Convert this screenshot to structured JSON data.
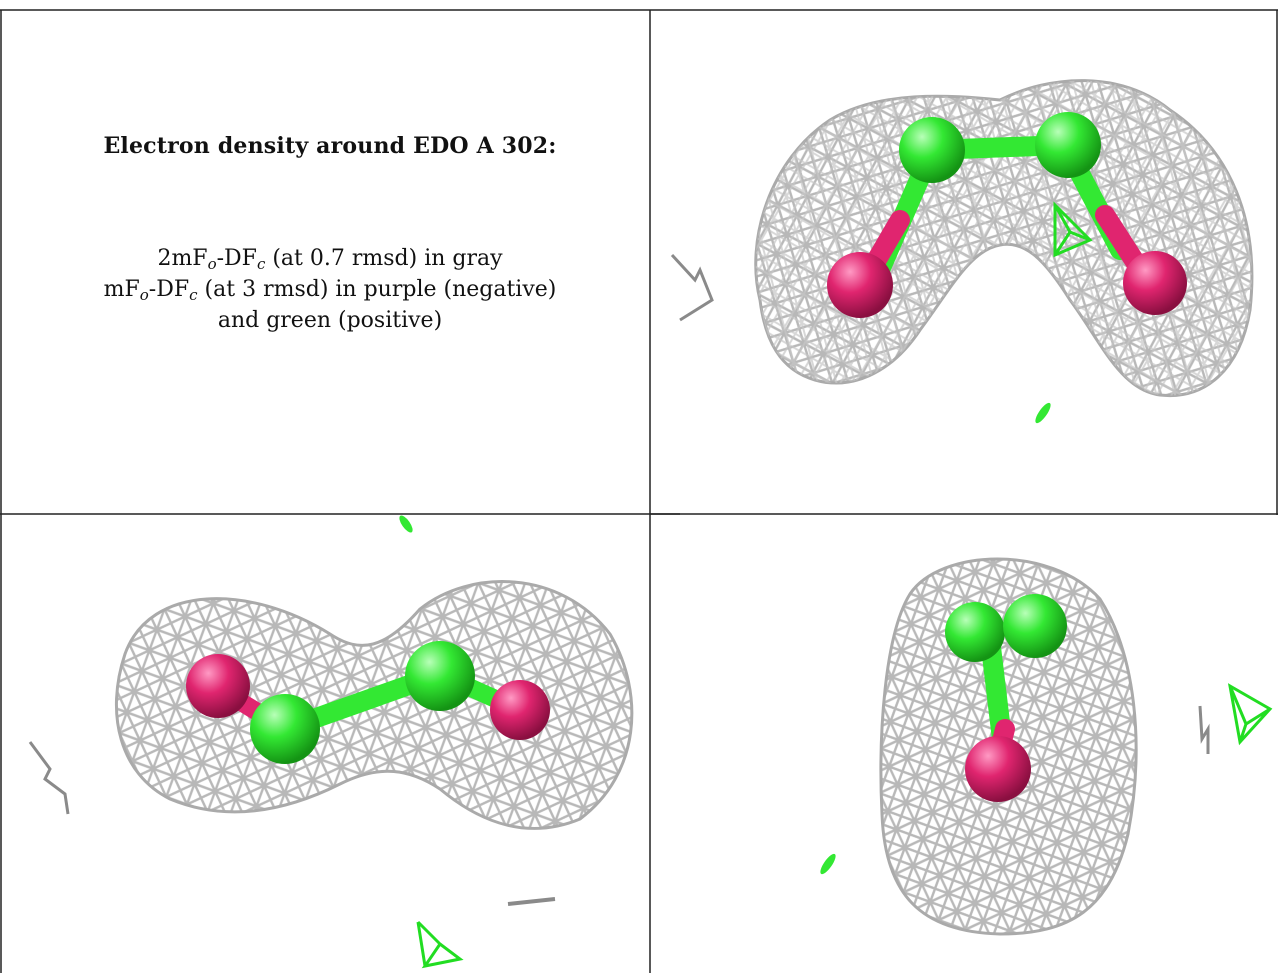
{
  "panel_text": {
    "title": "Electron density around EDO A 302:",
    "legend_line1_pre": "2mF",
    "legend_line1_mid": "-DF",
    "legend_line1_post": " (at 0.7 rmsd) in gray",
    "legend_line2_pre": "mF",
    "legend_line2_mid": "-DF",
    "legend_line2_post": " (at 3 rmsd) in purple (negative)",
    "legend_line3": "and green (positive)",
    "sub_o": "o",
    "sub_c": "c"
  },
  "colors": {
    "mesh_gray": "#b8b8b8",
    "carbon_green": "#33e833",
    "oxygen_pink": "#e0256f",
    "positive_density_green": "#22dd22",
    "border": "#222222"
  },
  "views": [
    {
      "name": "top-right-view"
    },
    {
      "name": "bottom-left-view"
    },
    {
      "name": "bottom-right-view"
    }
  ]
}
